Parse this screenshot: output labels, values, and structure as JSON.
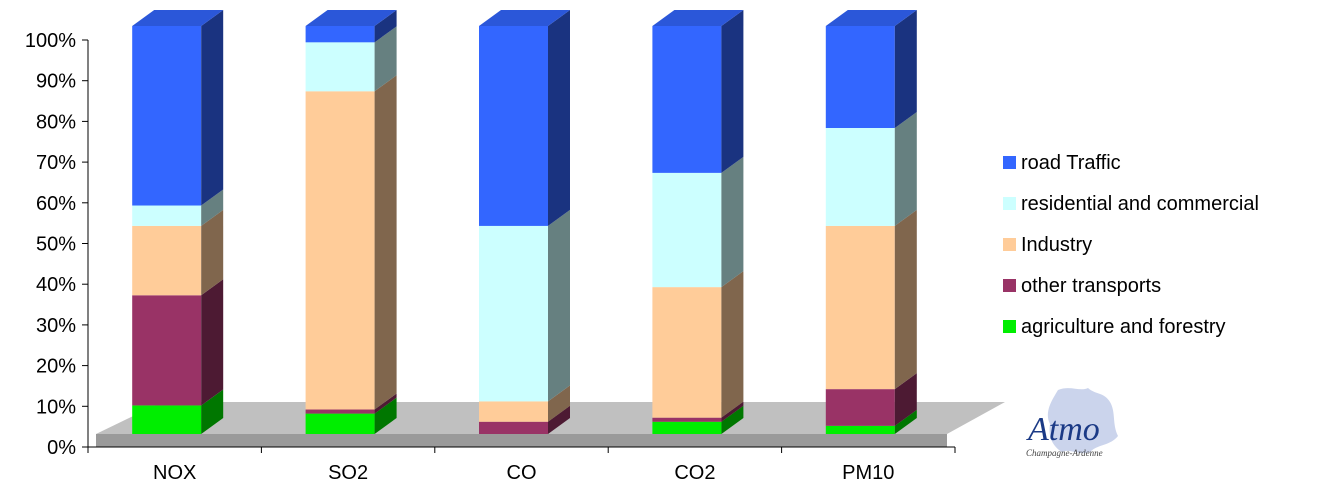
{
  "chart_data": {
    "type": "bar",
    "stacked": true,
    "three_d": true,
    "categories": [
      "NOX",
      "SO2",
      "CO",
      "CO2",
      "PM10"
    ],
    "series": [
      {
        "name": "agriculture and forestry",
        "color": "#00ee00",
        "values": [
          7,
          5,
          0,
          3,
          2
        ]
      },
      {
        "name": "other transports",
        "color": "#993366",
        "values": [
          27,
          1,
          3,
          1,
          9
        ]
      },
      {
        "name": "Industry",
        "color": "#ffcc99",
        "values": [
          17,
          78,
          5,
          32,
          40
        ]
      },
      {
        "name": "residential and commercial",
        "color": "#ccffff",
        "values": [
          5,
          12,
          43,
          28,
          24
        ]
      },
      {
        "name": "road Traffic",
        "color": "#3366ff",
        "values": [
          44,
          4,
          49,
          36,
          25
        ]
      }
    ],
    "y_ticks": [
      "0%",
      "10%",
      "20%",
      "30%",
      "40%",
      "50%",
      "60%",
      "70%",
      "80%",
      "90%",
      "100%"
    ],
    "ylim": [
      0,
      100
    ],
    "legend_position": "right",
    "floor_color": "#c0c0c0"
  },
  "logo": {
    "main": "Atmo",
    "sub": "Champagne-Ardenne"
  }
}
